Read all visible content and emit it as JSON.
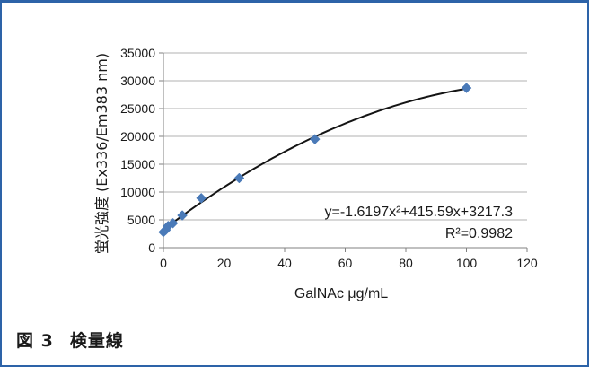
{
  "chart_data": {
    "type": "scatter",
    "xlabel": "GalNAc μg/mL",
    "ylabel": "蛍光強度 (Ex336/Em383 nm)",
    "xlim": [
      0,
      120
    ],
    "ylim": [
      0,
      35000
    ],
    "xticks": [
      0,
      20,
      40,
      60,
      80,
      100,
      120
    ],
    "yticks": [
      0,
      5000,
      10000,
      15000,
      20000,
      25000,
      30000,
      35000
    ],
    "grid": "horizontal",
    "points": [
      {
        "x": 0,
        "y": 2800
      },
      {
        "x": 0.78,
        "y": 3200
      },
      {
        "x": 1.56,
        "y": 3900
      },
      {
        "x": 3.13,
        "y": 4400
      },
      {
        "x": 6.25,
        "y": 5800
      },
      {
        "x": 12.5,
        "y": 8900
      },
      {
        "x": 25,
        "y": 12500
      },
      {
        "x": 50,
        "y": 19500
      },
      {
        "x": 100,
        "y": 28700
      }
    ],
    "trendline": {
      "a": -1.6197,
      "b": 415.59,
      "c": 3217.3
    },
    "annotation_equation": "y=-1.6197x²+415.59x+3217.3",
    "annotation_r2": "R²=0.9982",
    "colors": {
      "marker": "#4a7ab8",
      "curve": "#141414",
      "grid": "#b0b0b0",
      "axis": "#808080",
      "frame": "#2d63a8"
    }
  },
  "caption": {
    "number": "図 3",
    "title": "検量線"
  }
}
